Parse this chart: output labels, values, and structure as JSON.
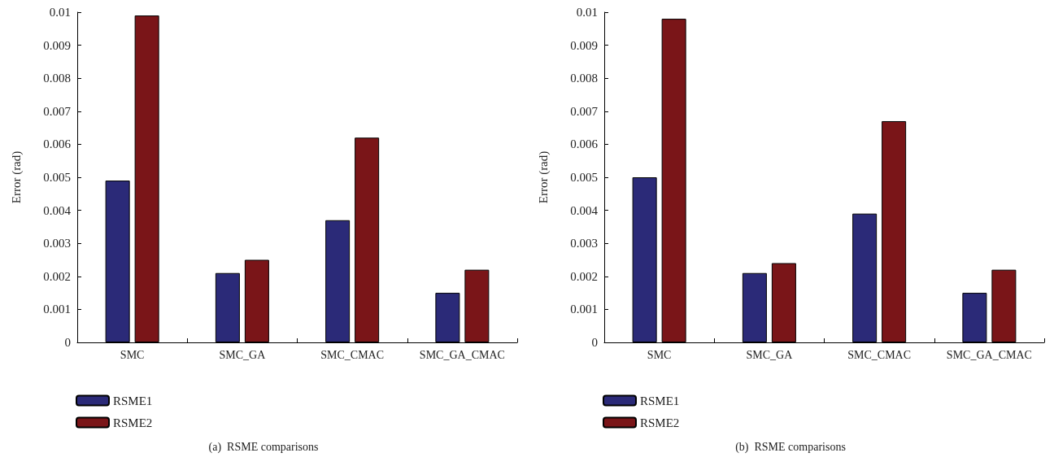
{
  "chart_data": [
    {
      "type": "bar",
      "title": "(a)  RSME comparisons",
      "ylabel": "Error (rad)",
      "categories": [
        "SMC",
        "SMC_GA",
        "SMC_CMAC",
        "SMC_GA_CMAC"
      ],
      "series": [
        {
          "name": "RSME1",
          "color": "#2b2a78",
          "values": [
            0.0049,
            0.0021,
            0.0037,
            0.0015
          ]
        },
        {
          "name": "RSME2",
          "color": "#7a1518",
          "values": [
            0.0099,
            0.0025,
            0.0062,
            0.0022
          ]
        }
      ],
      "ylim": [
        0,
        0.01
      ],
      "yticks": [
        0,
        0.001,
        0.002,
        0.003,
        0.004,
        0.005,
        0.006,
        0.007,
        0.008,
        0.009,
        0.01
      ],
      "grid": false,
      "legend": "bottom left"
    },
    {
      "type": "bar",
      "title": "(b)  RSME comparisons",
      "ylabel": "Error (rad)",
      "categories": [
        "SMC",
        "SMC_GA",
        "SMC_CMAC",
        "SMC_GA_CMAC"
      ],
      "series": [
        {
          "name": "RSME1",
          "color": "#2b2a78",
          "values": [
            0.005,
            0.0021,
            0.0039,
            0.0015
          ]
        },
        {
          "name": "RSME2",
          "color": "#7a1518",
          "values": [
            0.0098,
            0.0024,
            0.0067,
            0.0022
          ]
        }
      ],
      "ylim": [
        0,
        0.01
      ],
      "yticks": [
        0,
        0.001,
        0.002,
        0.003,
        0.004,
        0.005,
        0.006,
        0.007,
        0.008,
        0.009,
        0.01
      ],
      "grid": false,
      "legend": "bottom left"
    }
  ]
}
